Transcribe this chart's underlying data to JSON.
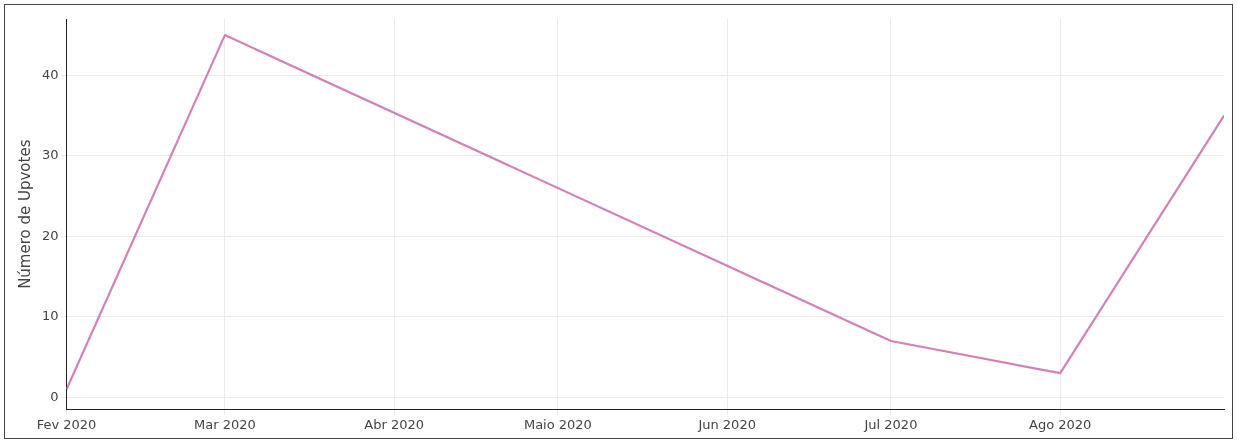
{
  "chart_data": {
    "type": "line",
    "ylabel": "Número de Upvotes",
    "x": [
      "2020-02-01",
      "2020-03-01",
      "2020-07-01",
      "2020-08-01",
      "2020-08-31"
    ],
    "series": [
      {
        "color": "#d282b5",
        "values": [
          1,
          45,
          7,
          3,
          35
        ]
      }
    ],
    "xlim": [
      "2020-02-01",
      "2020-08-31"
    ],
    "xticks": [
      {
        "value": "2020-02-01",
        "label": "Fev 2020"
      },
      {
        "value": "2020-03-01",
        "label": "Mar 2020"
      },
      {
        "value": "2020-04-01",
        "label": "Abr 2020"
      },
      {
        "value": "2020-05-01",
        "label": "Maio 2020"
      },
      {
        "value": "2020-06-01",
        "label": "Jun 2020"
      },
      {
        "value": "2020-07-01",
        "label": "Jul 2020"
      },
      {
        "value": "2020-08-01",
        "label": "Ago 2020"
      }
    ],
    "ylim": [
      -1.5,
      47
    ],
    "yticks": [
      0,
      10,
      20,
      30,
      40
    ],
    "grid": true,
    "legend": false,
    "marker": "none",
    "line_style": "solid"
  }
}
